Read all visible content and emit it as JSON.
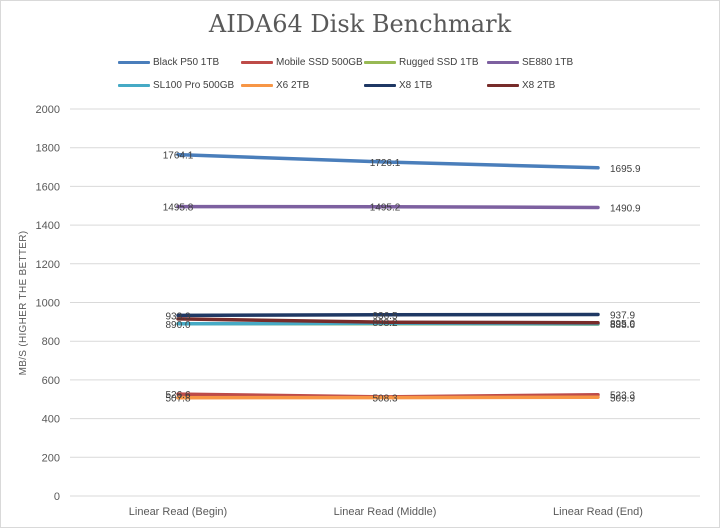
{
  "chart_data": {
    "type": "line",
    "title": "AIDA64 Disk Benchmark",
    "xlabel": "",
    "ylabel": "MB/S (HIGHER THE BETTER)",
    "ylim": [
      0,
      2000
    ],
    "yticks": [
      "0",
      "200",
      "400",
      "600",
      "800",
      "1000",
      "1200",
      "1400",
      "1600",
      "1800",
      "2000"
    ],
    "categories": [
      "Linear Read (Begin)",
      "Linear Read (Middle)",
      "Linear Read (End)"
    ],
    "grid": true,
    "legend_position": "top",
    "series": [
      {
        "name": "Black P50 1TB",
        "color": "#4a7ebb",
        "values": [
          1764.1,
          1726.1,
          1695.9
        ],
        "labels": [
          "1764.1",
          "1726.1",
          "1695.9"
        ]
      },
      {
        "name": "Mobile SSD 500GB",
        "color": "#be4b48",
        "values": [
          526.6,
          512.0,
          523.3
        ],
        "labels": [
          "526.6",
          "",
          "523.3"
        ]
      },
      {
        "name": "Rugged SSD 1TB",
        "color": "#98b954",
        "values": [
          890.0,
          890.2,
          888.6
        ],
        "labels": [
          "",
          "",
          "888.6"
        ]
      },
      {
        "name": "SE880 1TB",
        "color": "#7d60a0",
        "values": [
          1495.8,
          1495.2,
          1490.9
        ],
        "labels": [
          "1495.8",
          "1495.2",
          "1490.9"
        ]
      },
      {
        "name": "SL100 Pro 500GB",
        "color": "#46aac5",
        "values": [
          890.0,
          892.2,
          890.0
        ],
        "labels": [
          "890.0",
          "",
          ""
        ]
      },
      {
        "name": "X6 2TB",
        "color": "#f79646",
        "values": [
          507.8,
          508.3,
          509.9
        ],
        "labels": [
          "507.8",
          "508.3",
          "509.9"
        ]
      },
      {
        "name": "X8 1TB",
        "color": "#1f3864",
        "values": [
          933.3,
          936.5,
          937.9
        ],
        "labels": [
          "933.3",
          "936.5",
          "937.9"
        ]
      },
      {
        "name": "X8 2TB",
        "color": "#772c2a",
        "values": [
          915.0,
          898.2,
          895.0
        ],
        "labels": [
          "",
          "898.2",
          "895.0"
        ]
      }
    ]
  }
}
